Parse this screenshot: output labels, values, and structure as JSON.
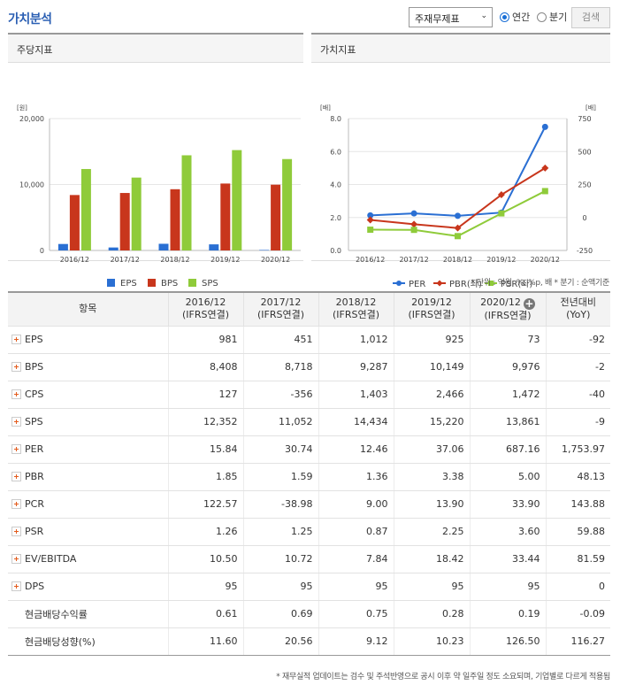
{
  "header": {
    "title": "가치분석",
    "select_value": "주재무제표",
    "radio_annual": "연간",
    "radio_quarter": "분기",
    "search_label": "검색"
  },
  "chart_left": {
    "panel_title": "주당지표",
    "unit_label": "[원]"
  },
  "chart_right": {
    "panel_title": "가치지표",
    "left_unit_label": "[배]",
    "right_unit_label": "[배]"
  },
  "chart_data": [
    {
      "type": "bar",
      "title": "주당지표",
      "categories": [
        "2016/12",
        "2017/12",
        "2018/12",
        "2019/12",
        "2020/12"
      ],
      "ylim": [
        0,
        20000
      ],
      "yticks": [
        "0",
        "10,000",
        "20,000"
      ],
      "series": [
        {
          "name": "EPS",
          "color": "#2a6fd3",
          "values": [
            981,
            451,
            1012,
            925,
            73
          ]
        },
        {
          "name": "BPS",
          "color": "#c8361c",
          "values": [
            8408,
            8718,
            9287,
            10149,
            9976
          ]
        },
        {
          "name": "SPS",
          "color": "#8fcb3a",
          "values": [
            12352,
            11052,
            14434,
            15220,
            13861
          ]
        }
      ]
    },
    {
      "type": "line",
      "title": "가치지표",
      "categories": [
        "2016/12",
        "2017/12",
        "2018/12",
        "2019/12",
        "2020/12"
      ],
      "ylim_left": [
        0,
        8
      ],
      "yticks_left": [
        "0.0",
        "2.0",
        "4.0",
        "6.0",
        "8.0"
      ],
      "ylim_right": [
        -250,
        750
      ],
      "yticks_right": [
        "-250",
        "0",
        "250",
        "500",
        "750"
      ],
      "series": [
        {
          "name": "PER",
          "axis": "right",
          "color": "#2a6fd3",
          "marker": "circle",
          "values": [
            15.84,
            30.74,
            12.46,
            37.06,
            687.16
          ]
        },
        {
          "name": "PBR(좌)",
          "axis": "left",
          "color": "#c8361c",
          "marker": "diamond",
          "values": [
            1.85,
            1.59,
            1.36,
            3.38,
            5.0
          ]
        },
        {
          "name": "PSR(좌)",
          "axis": "left",
          "color": "#8fcb3a",
          "marker": "square",
          "values": [
            1.26,
            1.25,
            0.87,
            2.25,
            3.6
          ]
        }
      ]
    }
  ],
  "units_note": "* 단위 : 억원, %, %p, 배    * 분기 : 순액기준",
  "table": {
    "headers": [
      {
        "line1": "항목",
        "line2": ""
      },
      {
        "line1": "2016/12",
        "line2": "(IFRS연결)"
      },
      {
        "line1": "2017/12",
        "line2": "(IFRS연결)"
      },
      {
        "line1": "2018/12",
        "line2": "(IFRS연결)"
      },
      {
        "line1": "2019/12",
        "line2": "(IFRS연결)"
      },
      {
        "line1": "2020/12",
        "line2": "(IFRS연결)"
      },
      {
        "line1": "전년대비",
        "line2": "(YoY)"
      }
    ],
    "rows": [
      {
        "label": "EPS",
        "expandable": true,
        "values": [
          "981",
          "451",
          "1,012",
          "925",
          "73",
          "-92"
        ]
      },
      {
        "label": "BPS",
        "expandable": true,
        "values": [
          "8,408",
          "8,718",
          "9,287",
          "10,149",
          "9,976",
          "-2"
        ]
      },
      {
        "label": "CPS",
        "expandable": true,
        "values": [
          "127",
          "-356",
          "1,403",
          "2,466",
          "1,472",
          "-40"
        ]
      },
      {
        "label": "SPS",
        "expandable": true,
        "values": [
          "12,352",
          "11,052",
          "14,434",
          "15,220",
          "13,861",
          "-9"
        ]
      },
      {
        "label": "PER",
        "expandable": true,
        "values": [
          "15.84",
          "30.74",
          "12.46",
          "37.06",
          "687.16",
          "1,753.97"
        ]
      },
      {
        "label": "PBR",
        "expandable": true,
        "values": [
          "1.85",
          "1.59",
          "1.36",
          "3.38",
          "5.00",
          "48.13"
        ]
      },
      {
        "label": "PCR",
        "expandable": true,
        "values": [
          "122.57",
          "-38.98",
          "9.00",
          "13.90",
          "33.90",
          "143.88"
        ]
      },
      {
        "label": "PSR",
        "expandable": true,
        "values": [
          "1.26",
          "1.25",
          "0.87",
          "2.25",
          "3.60",
          "59.88"
        ]
      },
      {
        "label": "EV/EBITDA",
        "expandable": true,
        "values": [
          "10.50",
          "10.72",
          "7.84",
          "18.42",
          "33.44",
          "81.59"
        ]
      },
      {
        "label": "DPS",
        "expandable": true,
        "values": [
          "95",
          "95",
          "95",
          "95",
          "95",
          "0"
        ]
      },
      {
        "label": "현금배당수익률",
        "expandable": false,
        "values": [
          "0.61",
          "0.69",
          "0.75",
          "0.28",
          "0.19",
          "-0.09"
        ]
      },
      {
        "label": "현금배당성향(%)",
        "expandable": false,
        "values": [
          "11.60",
          "20.56",
          "9.12",
          "10.23",
          "126.50",
          "116.27"
        ]
      }
    ]
  },
  "footnote": "* 재무실적 업데이트는 검수 및 주석반영으로 공시 이후 약 일주일 정도 소요되며, 기업별로 다르게 적용됨"
}
